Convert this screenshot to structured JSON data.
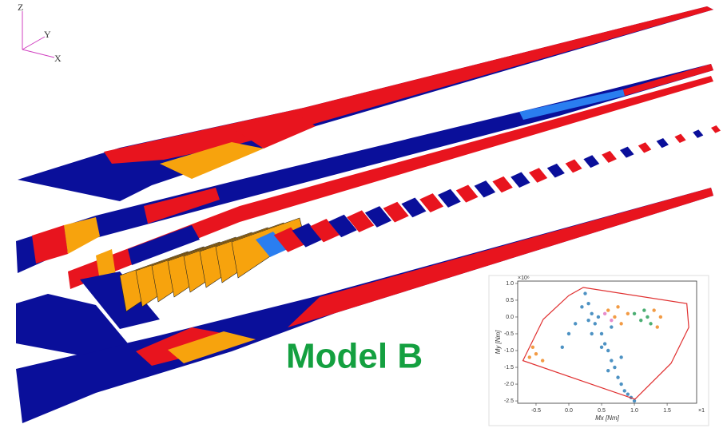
{
  "axes_triad": {
    "z": "Z",
    "y": "Y",
    "x": "X"
  },
  "model_label": "Model B",
  "chart_data": {
    "type": "scatter",
    "x_label": "Mx [Nm]",
    "y_label": "My [Nm]",
    "y_offset_label": "×10⁶",
    "x_offset_label": "×1",
    "xlim": [
      -0.78,
      1.95
    ],
    "ylim": [
      -2.57,
      1.07
    ],
    "xticks": [
      {
        "value": -0.5,
        "label": "-0.5"
      },
      {
        "value": 0,
        "label": "0.0"
      },
      {
        "value": 0.5,
        "label": "0.5"
      },
      {
        "value": 1,
        "label": "1.0"
      },
      {
        "value": 1.5,
        "label": "1.5"
      }
    ],
    "yticks": [
      {
        "value": 1,
        "label": "1.0"
      },
      {
        "value": 0.5,
        "label": "0.5"
      },
      {
        "value": 0,
        "label": "0.0"
      },
      {
        "value": -0.5,
        "label": "-0.5"
      },
      {
        "value": -1,
        "label": "-1.0"
      },
      {
        "value": -1.5,
        "label": "-1.5"
      },
      {
        "value": -2,
        "label": "-2.0"
      },
      {
        "value": -2.5,
        "label": "-2.5"
      }
    ],
    "series": [
      {
        "color": "#2e7fb8",
        "x": [
          0.25,
          0.3,
          0.35,
          0.4,
          0.45,
          0.5,
          0.55,
          0.6,
          0.65,
          0.7,
          0.75,
          0.8,
          0.85,
          0.9,
          0.95,
          1.0,
          0.2,
          0.35,
          0.5,
          0.65,
          0.8,
          0.1,
          0.0,
          -0.1,
          0.3,
          0.6
        ],
        "values": [
          0.7,
          0.4,
          0.1,
          -0.2,
          0.0,
          -0.5,
          -0.8,
          -1.0,
          -1.3,
          -1.5,
          -1.8,
          -2.0,
          -2.2,
          -2.3,
          -2.4,
          -2.5,
          0.3,
          -0.5,
          -0.9,
          -0.3,
          -1.2,
          -0.2,
          -0.5,
          -0.9,
          -0.1,
          -1.6
        ]
      },
      {
        "color": "#f08a24",
        "x": [
          0.6,
          0.7,
          0.8,
          0.75,
          0.9,
          1.3,
          1.4,
          1.35,
          -0.55,
          -0.5,
          -0.4,
          -0.6
        ],
        "values": [
          0.2,
          0.0,
          -0.2,
          0.3,
          0.1,
          0.2,
          0.0,
          -0.3,
          -0.9,
          -1.1,
          -1.3,
          -1.2
        ]
      },
      {
        "color": "#2ca05a",
        "x": [
          1.0,
          1.1,
          1.2,
          1.15,
          1.25
        ],
        "values": [
          0.1,
          -0.1,
          0.0,
          0.2,
          -0.2
        ]
      },
      {
        "color": "#e377c2",
        "x": [
          0.55,
          0.65
        ],
        "values": [
          0.1,
          -0.1
        ]
      }
    ],
    "hull": {
      "color": "#e03030",
      "x": [
        -0.7,
        -0.39,
        0.0,
        0.22,
        1.8,
        1.83,
        1.56,
        1.01
      ],
      "values": [
        -1.3,
        -0.07,
        0.64,
        0.88,
        0.4,
        -0.31,
        -1.38,
        -2.45
      ]
    }
  }
}
